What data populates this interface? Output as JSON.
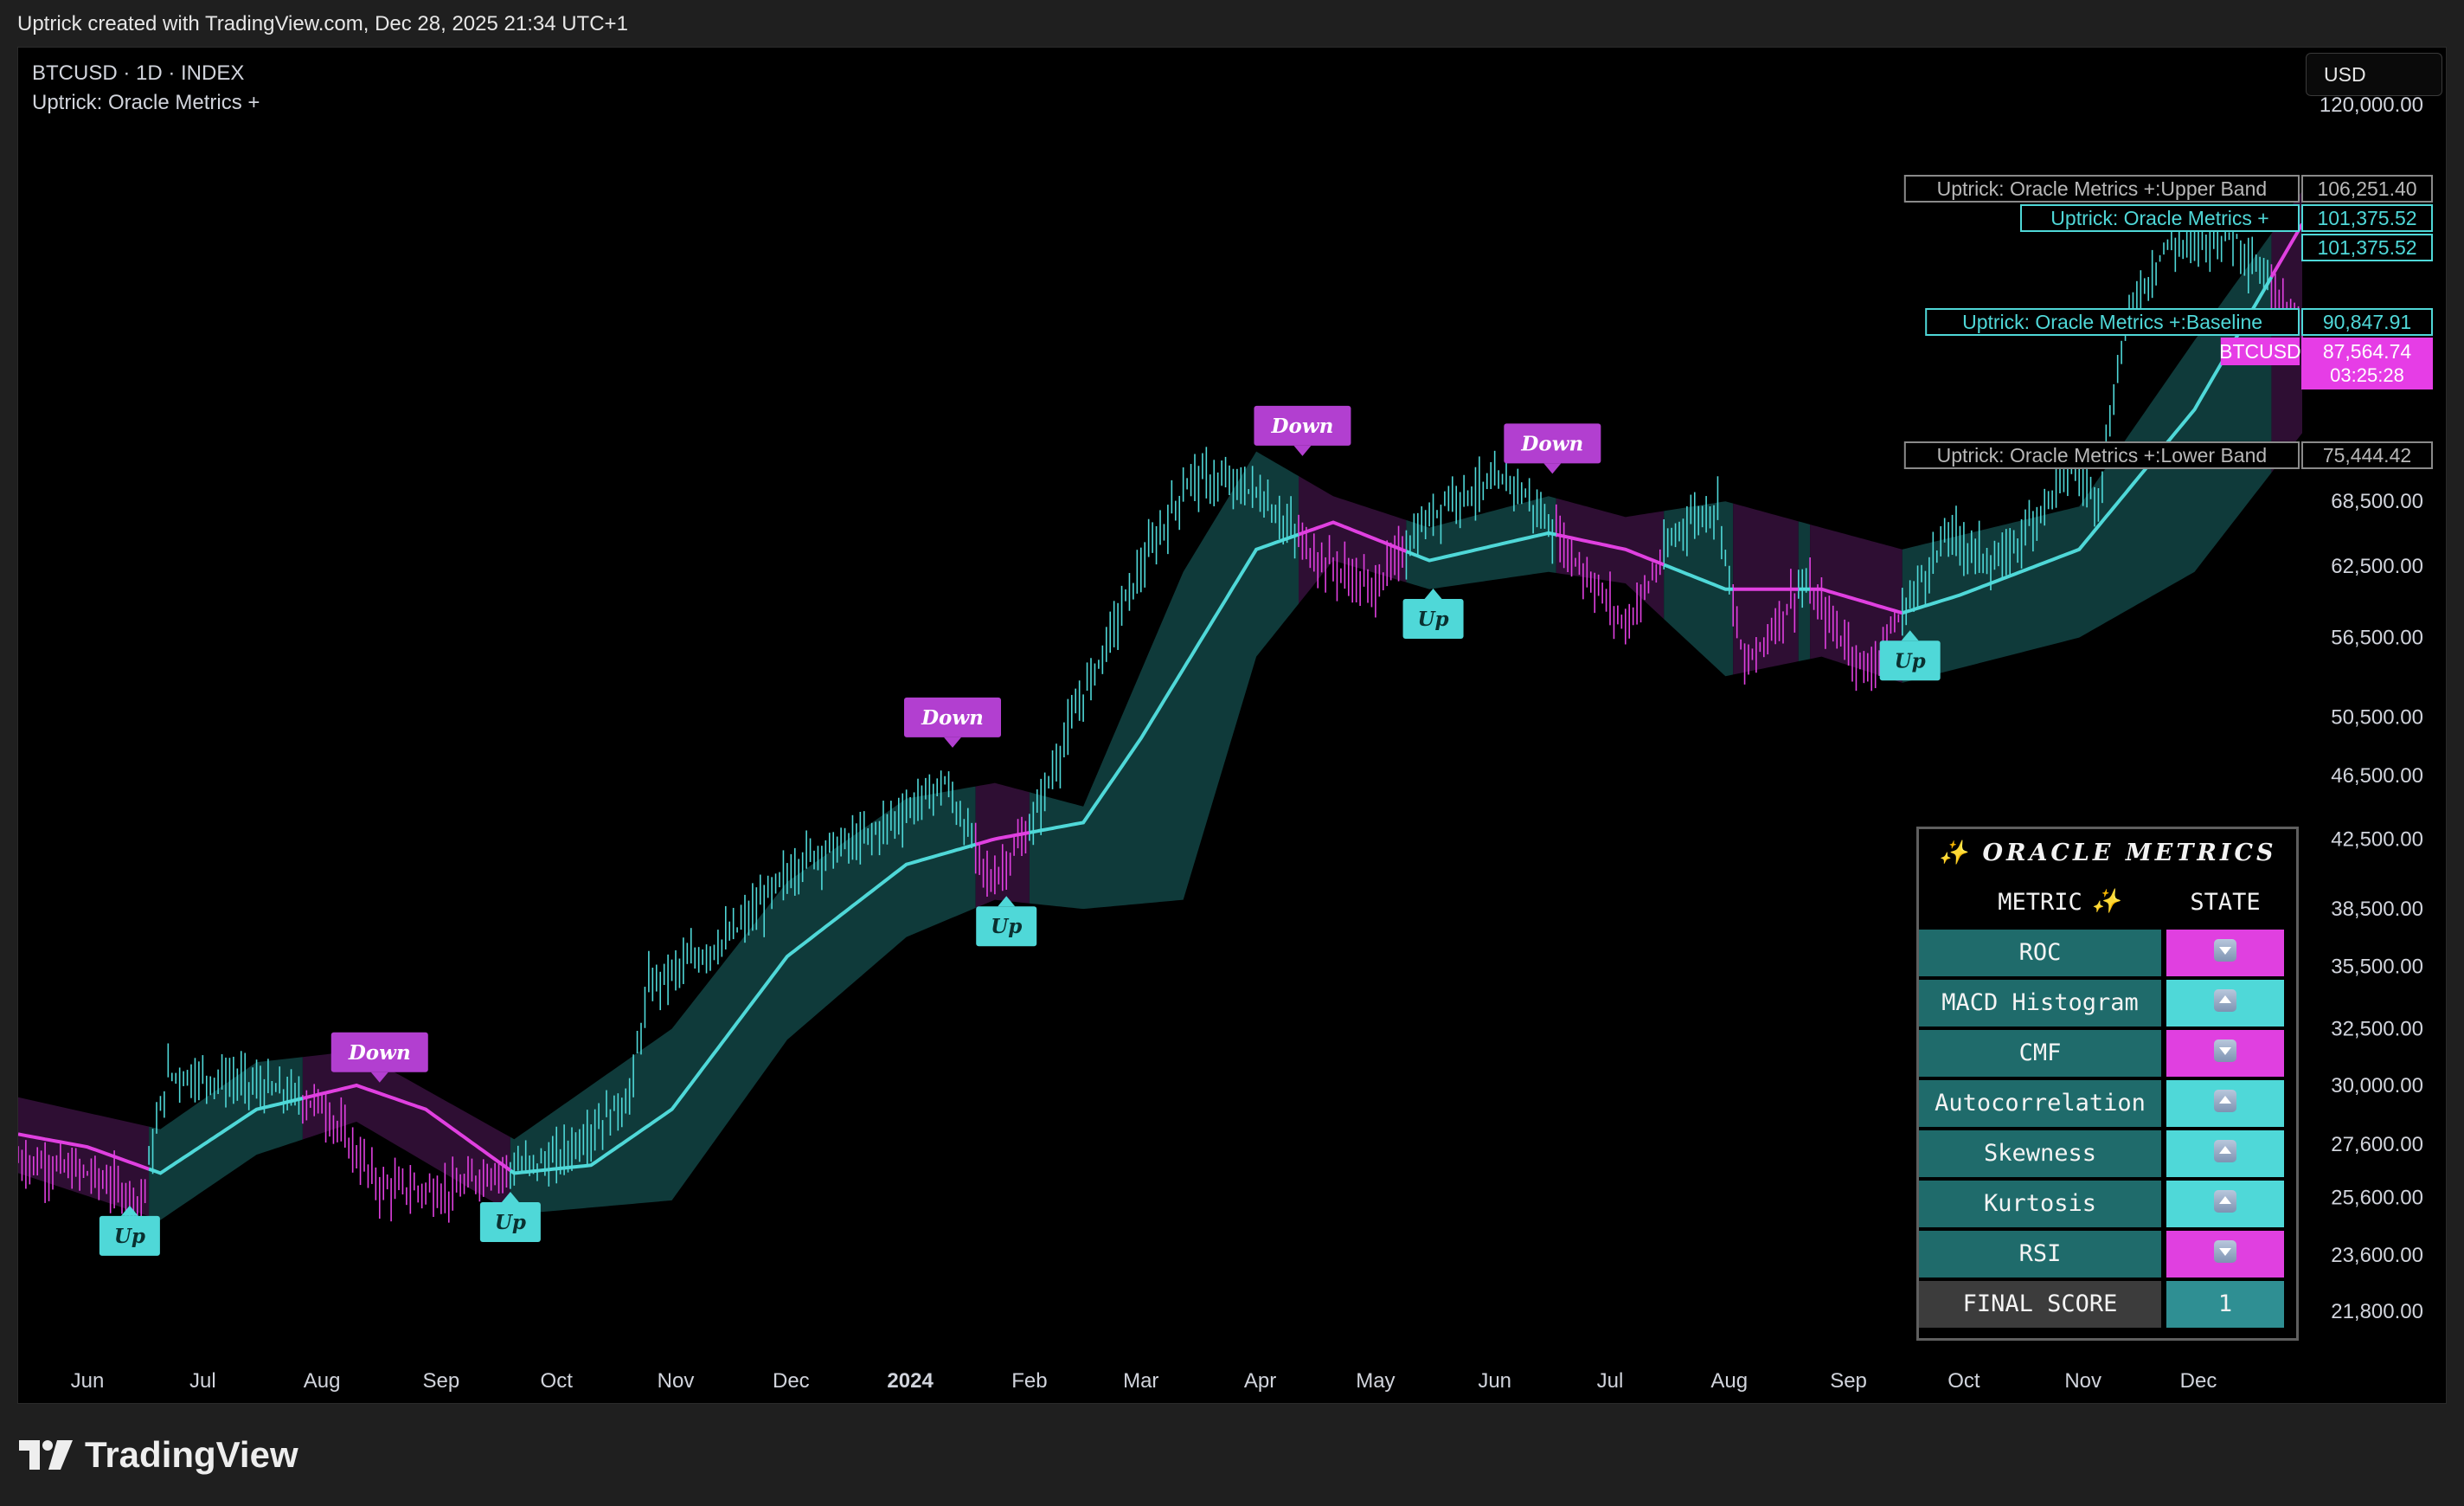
{
  "header": {
    "caption": "Uptrick created with TradingView.com, Dec 28, 2025 21:34 UTC+1"
  },
  "legend": {
    "symbol": "BTCUSD · 1D · INDEX",
    "indicator": "Uptrick: Oracle Metrics +"
  },
  "currency": "USD",
  "footer": {
    "brand": "TradingView"
  },
  "colors": {
    "bull": "#4fd8d8",
    "bear": "#e040e0",
    "bull_band": "#0f3a3a",
    "bear_band": "#2e0e33",
    "price_tag": "#e63de6",
    "background": "#000000"
  },
  "metrics_table": {
    "title": "✨ ORACLE METRICS ✨",
    "col_metric": "METRIC",
    "col_state": "STATE",
    "rows": [
      {
        "name": "ROC",
        "state": "down"
      },
      {
        "name": "MACD Histogram",
        "state": "up"
      },
      {
        "name": "CMF",
        "state": "down"
      },
      {
        "name": "Autocorrelation",
        "state": "up"
      },
      {
        "name": "Skewness",
        "state": "up"
      },
      {
        "name": "Kurtosis",
        "state": "up"
      },
      {
        "name": "RSI",
        "state": "down"
      }
    ],
    "final_label": "FINAL SCORE",
    "final_value": "1"
  },
  "chart_data": {
    "type": "line",
    "title": "BTCUSD · 1D · INDEX",
    "xlabel": "",
    "ylabel": "",
    "x_range": [
      "2023-05-14",
      "2024-12-28"
    ],
    "y_ticks": [
      "120,000.00",
      "68,500.00",
      "62,500.00",
      "56,500.00",
      "50,500.00",
      "46,500.00",
      "42,500.00",
      "38,500.00",
      "35,500.00",
      "32,500.00",
      "30,000.00",
      "27,600.00",
      "25,600.00",
      "23,600.00",
      "21,800.00"
    ],
    "x_ticks": [
      "Jun",
      "Jul",
      "Aug",
      "Sep",
      "Oct",
      "Nov",
      "Dec",
      "2024",
      "Feb",
      "Mar",
      "Apr",
      "May",
      "Jun",
      "Jul",
      "Aug",
      "Sep",
      "Oct",
      "Nov",
      "Dec"
    ],
    "series": [
      {
        "name": "Uptrick: Oracle Metrics +",
        "x": [
          "2023-05-14",
          "2023-06-01",
          "2023-06-20",
          "2023-07-15",
          "2023-08-10",
          "2023-08-28",
          "2023-09-20",
          "2023-10-10",
          "2023-10-31",
          "2023-11-30",
          "2023-12-31",
          "2024-01-23",
          "2024-02-15",
          "2024-03-01",
          "2024-03-31",
          "2024-04-20",
          "2024-05-15",
          "2024-06-15",
          "2024-07-05",
          "2024-07-31",
          "2024-08-25",
          "2024-09-15",
          "2024-09-30",
          "2024-10-31",
          "2024-11-30",
          "2024-12-28"
        ],
        "values": [
          28000,
          27500,
          26500,
          29000,
          30000,
          29000,
          26500,
          26800,
          29000,
          36000,
          41000,
          42500,
          43500,
          49000,
          64000,
          66500,
          63000,
          65500,
          64000,
          60500,
          60500,
          58500,
          60000,
          64000,
          78000,
          101375.52
        ]
      },
      {
        "name": "Uptrick: Oracle Metrics +:Upper Band",
        "x": [
          "2023-05-14",
          "2023-06-20",
          "2023-07-15",
          "2023-08-10",
          "2023-09-20",
          "2023-10-31",
          "2023-11-30",
          "2023-12-31",
          "2024-01-23",
          "2024-02-15",
          "2024-03-12",
          "2024-03-31",
          "2024-04-20",
          "2024-05-15",
          "2024-06-15",
          "2024-07-05",
          "2024-07-31",
          "2024-08-25",
          "2024-09-15",
          "2024-10-31",
          "2024-11-30",
          "2024-12-28"
        ],
        "values": [
          29500,
          28200,
          31000,
          31500,
          27800,
          32500,
          40000,
          45000,
          46000,
          44500,
          62000,
          73500,
          69000,
          66000,
          69000,
          67000,
          68500,
          66000,
          64000,
          68000,
          86000,
          106251.4
        ]
      },
      {
        "name": "Uptrick: Oracle Metrics +:Lower Band",
        "x": [
          "2023-05-14",
          "2023-06-20",
          "2023-07-15",
          "2023-08-10",
          "2023-09-20",
          "2023-10-31",
          "2023-11-30",
          "2023-12-31",
          "2024-01-23",
          "2024-02-15",
          "2024-03-12",
          "2024-03-31",
          "2024-04-20",
          "2024-05-15",
          "2024-06-15",
          "2024-07-05",
          "2024-07-31",
          "2024-08-25",
          "2024-09-15",
          "2024-10-31",
          "2024-11-30",
          "2024-12-28"
        ],
        "values": [
          26500,
          24800,
          27200,
          28500,
          25000,
          25500,
          32000,
          37000,
          39000,
          38500,
          39000,
          55000,
          63000,
          60500,
          62000,
          61000,
          53500,
          55000,
          53000,
          56500,
          62000,
          75444.42
        ]
      },
      {
        "name": "BTCUSD",
        "x": [
          "2023-05-14",
          "2023-06-01",
          "2023-06-15",
          "2023-06-22",
          "2023-07-10",
          "2023-08-01",
          "2023-08-16",
          "2023-09-05",
          "2023-09-12",
          "2023-10-01",
          "2023-10-20",
          "2023-10-25",
          "2023-11-15",
          "2023-12-05",
          "2023-12-20",
          "2024-01-10",
          "2024-01-22",
          "2024-02-01",
          "2024-02-14",
          "2024-02-28",
          "2024-03-14",
          "2024-03-31",
          "2024-04-15",
          "2024-04-30",
          "2024-05-20",
          "2024-06-06",
          "2024-06-20",
          "2024-07-05",
          "2024-07-20",
          "2024-07-29",
          "2024-08-05",
          "2024-08-20",
          "2024-09-06",
          "2024-09-27",
          "2024-10-10",
          "2024-10-29",
          "2024-11-05",
          "2024-11-12",
          "2024-11-22",
          "2024-12-10",
          "2024-12-28"
        ],
        "values": [
          27000,
          26500,
          25500,
          30500,
          30200,
          29200,
          26000,
          25800,
          26500,
          27000,
          29500,
          34500,
          37000,
          41500,
          42500,
          46000,
          40000,
          43000,
          51500,
          61000,
          71000,
          69500,
          63500,
          60500,
          69000,
          70500,
          64000,
          57500,
          66500,
          68000,
          54000,
          61000,
          53800,
          65500,
          62500,
          72000,
          69000,
          88000,
          98000,
          100000,
          87564.74
        ]
      }
    ],
    "signals": [
      {
        "label": "Up",
        "x": "2023-06-12",
        "price": 25500
      },
      {
        "label": "Down",
        "x": "2023-08-16",
        "price": 29900
      },
      {
        "label": "Up",
        "x": "2023-09-19",
        "price": 26000
      },
      {
        "label": "Down",
        "x": "2024-01-12",
        "price": 48000
      },
      {
        "label": "Up",
        "x": "2024-01-26",
        "price": 39500
      },
      {
        "label": "Down",
        "x": "2024-04-12",
        "price": 72500
      },
      {
        "label": "Up",
        "x": "2024-05-16",
        "price": 61000
      },
      {
        "label": "Down",
        "x": "2024-06-16",
        "price": 70700
      },
      {
        "label": "Up",
        "x": "2024-09-17",
        "price": 57500
      }
    ],
    "price_labels": [
      {
        "name": "Uptrick: Oracle Metrics +:Upper Band",
        "value": "106,251.40",
        "style": "grey"
      },
      {
        "name": "Uptrick: Oracle Metrics +",
        "value": "101,375.52",
        "style": "teal"
      },
      {
        "name": "",
        "value": "101,375.52",
        "style": "teal"
      },
      {
        "name": "Uptrick: Oracle Metrics +:Baseline",
        "value": "90,847.91",
        "style": "teal"
      },
      {
        "name": "BTCUSD",
        "value": "87,564.74",
        "extra": "03:25:28",
        "style": "magenta"
      },
      {
        "name": "Uptrick: Oracle Metrics +:Lower Band",
        "value": "75,444.42",
        "style": "grey"
      }
    ]
  }
}
